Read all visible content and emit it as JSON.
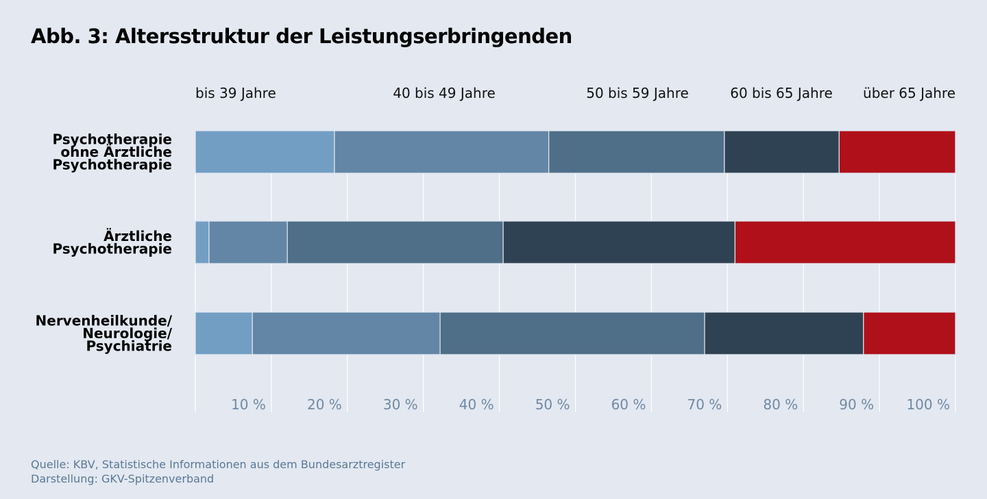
{
  "chart_data": {
    "type": "bar",
    "orientation": "horizontal",
    "stacked": true,
    "title": "Abb. 3: Altersstruktur der Leistungserbringenden",
    "categories": [
      [
        "Psychotherapie",
        "ohne Ärztliche",
        "Psychotherapie"
      ],
      [
        "Ärztliche",
        "Psychotherapie"
      ],
      [
        "Nervenheilkunde/",
        "Neurologie/",
        "Psychiatrie"
      ]
    ],
    "series": [
      {
        "name": "bis 39 Jahre",
        "color": "#729ec4",
        "values": [
          18.3,
          1.8,
          7.5
        ]
      },
      {
        "name": "40 bis 49 Jahre",
        "color": "#6386a6",
        "values": [
          28.2,
          10.3,
          24.7
        ]
      },
      {
        "name": "50 bis 59 Jahre",
        "color": "#4f6e88",
        "values": [
          23.1,
          28.4,
          34.8
        ]
      },
      {
        "name": "60 bis 65 Jahre",
        "color": "#2f4253",
        "values": [
          15.1,
          30.5,
          20.9
        ]
      },
      {
        "name": "über 65 Jahre",
        "color": "#b0101a",
        "values": [
          15.3,
          29.0,
          12.1
        ]
      }
    ],
    "xlim": [
      0,
      100
    ],
    "ticks": [
      "10 %",
      "20 %",
      "30 %",
      "40 %",
      "50 %",
      "60 %",
      "70 %",
      "80 %",
      "90 %",
      "100 %"
    ],
    "tick_values": [
      10,
      20,
      30,
      40,
      50,
      60,
      70,
      80,
      90,
      100
    ],
    "grid": true,
    "legend_position": "top"
  },
  "footer": {
    "source": "Quelle: KBV, Statistische Informationen aus dem Bundesarztregister",
    "credit": "Darstellung: GKV-Spitzenverband"
  }
}
